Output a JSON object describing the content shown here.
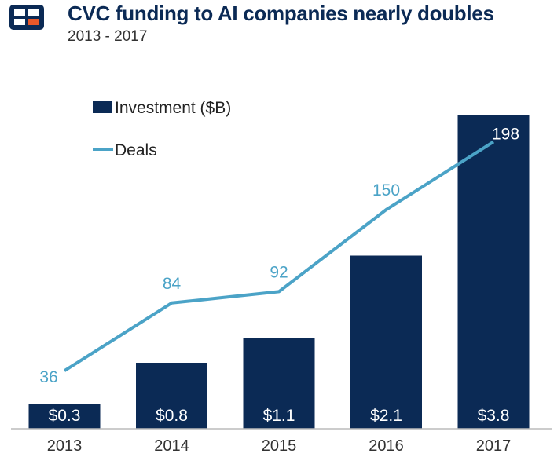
{
  "header": {
    "title": "CVC funding to AI companies nearly doubles",
    "subtitle": "2013 - 2017"
  },
  "logo": {
    "name": "cb-insights-logo",
    "colors": [
      "#0b2a55",
      "#e8582a"
    ]
  },
  "colors": {
    "bar": "#0b2a55",
    "line": "#4ba3c7",
    "axis": "#bbbbbb"
  },
  "chart_data": {
    "type": "bar",
    "categories": [
      "2013",
      "2014",
      "2015",
      "2016",
      "2017"
    ],
    "series": [
      {
        "name": "Investment ($B)",
        "type": "bar",
        "axis": "left",
        "values": [
          0.3,
          0.8,
          1.1,
          2.1,
          3.8
        ],
        "labels": [
          "$0.3",
          "$0.8",
          "$1.1",
          "$2.1",
          "$3.8"
        ]
      },
      {
        "name": "Deals",
        "type": "line",
        "axis": "right",
        "values": [
          36,
          84,
          92,
          150,
          198
        ],
        "labels": [
          "36",
          "84",
          "92",
          "150",
          "198"
        ]
      }
    ],
    "legend_position": "top-left",
    "grid": false
  }
}
